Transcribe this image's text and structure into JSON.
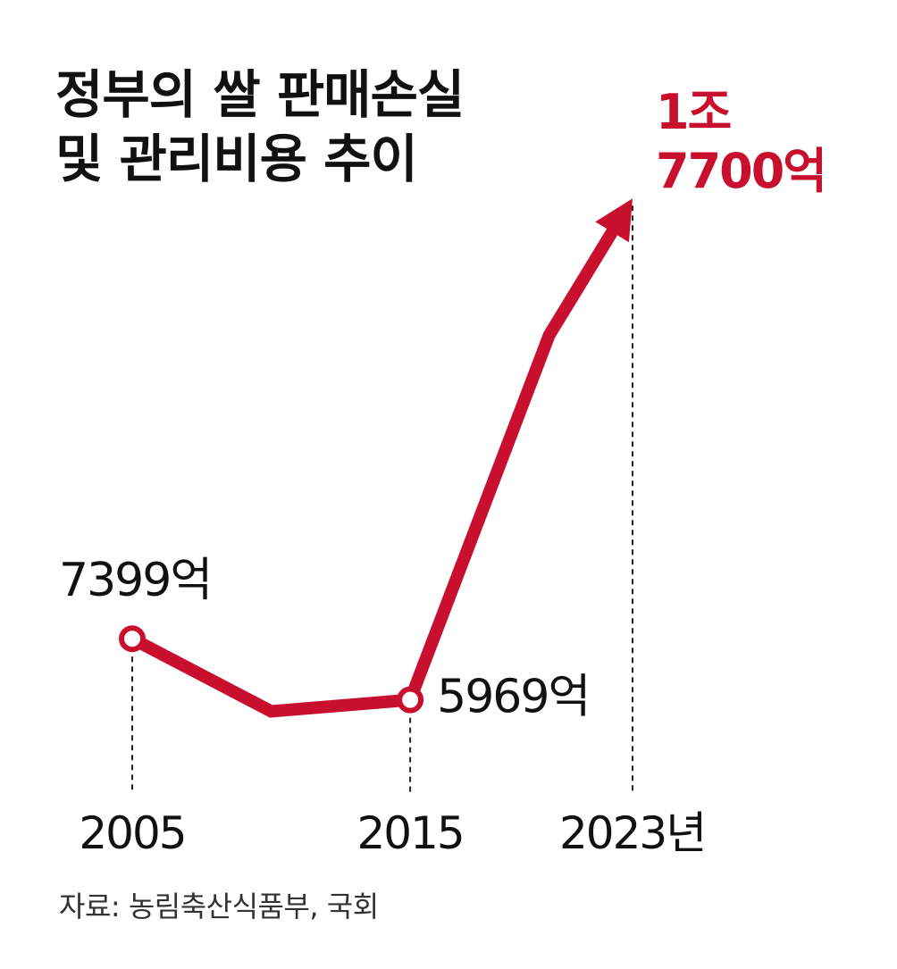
{
  "title_lines": [
    "정부의 쌀 판매손실",
    "및 관리비용 추이"
  ],
  "source": "자료: 농림축산식품부, 국회",
  "colors": {
    "line": "#c8102e",
    "highlight_label": "#c8102e",
    "text": "#111111",
    "guide": "#222222"
  },
  "chart_data": {
    "type": "line",
    "x": [
      2005,
      2010,
      2015,
      2020,
      2023
    ],
    "values": [
      7399,
      5700,
      5969,
      14500,
      17700
    ],
    "units": "억원",
    "xticks": [
      "2005",
      "2015",
      "2023년"
    ],
    "xtick_values": [
      2005,
      2015,
      2023
    ],
    "markers": [
      {
        "x": 2005,
        "style": "open-circle"
      },
      {
        "x": 2015,
        "style": "open-circle"
      }
    ],
    "end_style": "arrow",
    "labels": [
      {
        "x": 2005,
        "lines": [
          "7399억"
        ],
        "color": "#111111"
      },
      {
        "x": 2015,
        "lines": [
          "5969억"
        ],
        "color": "#111111"
      },
      {
        "x": 2023,
        "lines": [
          "1조",
          "7700억"
        ],
        "color": "#c8102e"
      }
    ],
    "ylim": [
      5000,
      19000
    ],
    "grid": false,
    "legend": false
  }
}
